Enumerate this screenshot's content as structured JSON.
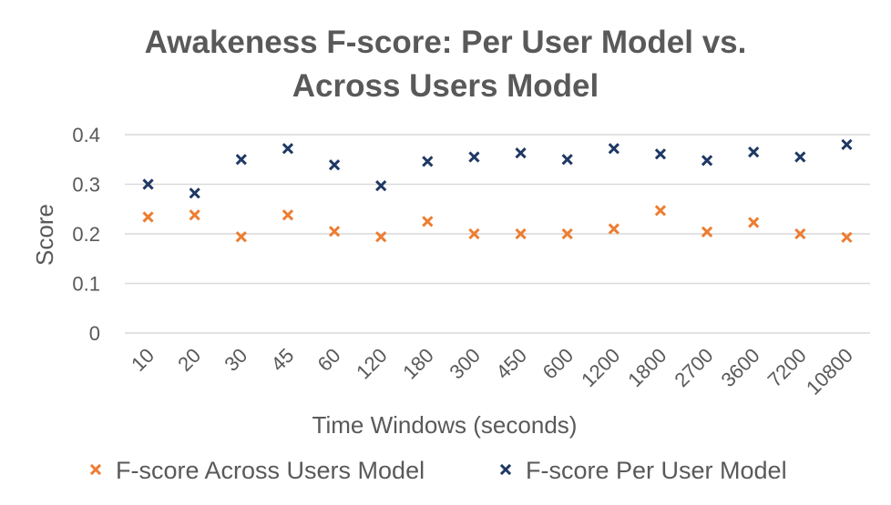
{
  "chart_data": {
    "type": "scatter",
    "title_lines": [
      "Awakeness F-score: Per User Model vs.",
      "Across Users Model"
    ],
    "xlabel": "Time Windows (seconds)",
    "ylabel": "Score",
    "categories": [
      "10",
      "20",
      "30",
      "45",
      "60",
      "120",
      "180",
      "300",
      "450",
      "600",
      "1200",
      "1800",
      "2700",
      "3600",
      "7200",
      "10800"
    ],
    "ylim": [
      0,
      0.4
    ],
    "yticks": [
      "0",
      "0.1",
      "0.2",
      "0.3",
      "0.4"
    ],
    "grid": true,
    "legend_position": "bottom",
    "series": [
      {
        "name": "F-score Across Users Model",
        "color": "#ED7D31",
        "marker": "x",
        "values": [
          0.234,
          0.238,
          0.194,
          0.238,
          0.205,
          0.194,
          0.225,
          0.2,
          0.2,
          0.2,
          0.21,
          0.247,
          0.204,
          0.223,
          0.2,
          0.193
        ]
      },
      {
        "name": "F-score Per User Model",
        "color": "#1F3864",
        "marker": "x",
        "values": [
          0.3,
          0.282,
          0.35,
          0.372,
          0.339,
          0.297,
          0.346,
          0.355,
          0.363,
          0.35,
          0.372,
          0.361,
          0.348,
          0.365,
          0.355,
          0.38
        ]
      }
    ]
  }
}
